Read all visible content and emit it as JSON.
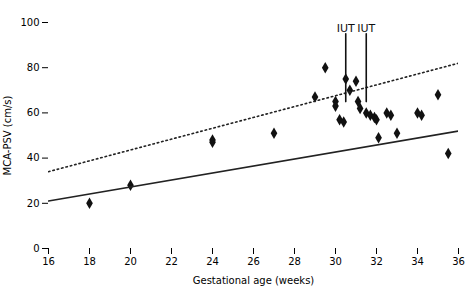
{
  "chart_data": {
    "type": "scatter",
    "xlabel": "Gestational age (weeks)",
    "ylabel": "MCA-PSV (cm/s)",
    "xlim": [
      16,
      36
    ],
    "ylim": [
      0,
      100
    ],
    "xticks": [
      16,
      18,
      20,
      22,
      24,
      26,
      28,
      30,
      32,
      34,
      36
    ],
    "yticks": [
      0,
      20,
      40,
      60,
      80,
      100
    ],
    "grid": false,
    "series": [
      {
        "type": "scatter",
        "marker": "diamond",
        "color": "#111111",
        "x": [
          18,
          20,
          24,
          24,
          27,
          29,
          29.5,
          30,
          30,
          30.2,
          30.4,
          30.5,
          30.7,
          31,
          31.1,
          31.2,
          31.5,
          31.7,
          31.9,
          32,
          32.1,
          32.5,
          32.7,
          33,
          34,
          34.2,
          35,
          35.5
        ],
        "values": [
          20,
          28,
          48,
          47,
          51,
          67,
          80,
          65,
          63,
          57,
          56,
          75,
          70,
          74,
          65,
          62,
          60,
          59,
          58,
          57,
          49,
          60,
          59,
          51,
          60,
          59,
          68,
          42
        ]
      },
      {
        "type": "line",
        "line_style": "solid",
        "color": "#222222",
        "x": [
          16,
          36
        ],
        "values": [
          21,
          52
        ]
      },
      {
        "type": "line",
        "line_style": "dotted",
        "color": "#222222",
        "x": [
          16,
          36
        ],
        "values": [
          34,
          82
        ]
      },
      {
        "type": "line",
        "line_style": "solid",
        "color": "#111111",
        "x": [
          30.5,
          30.5
        ],
        "values": [
          65,
          95
        ]
      },
      {
        "type": "line",
        "line_style": "solid",
        "color": "#111111",
        "x": [
          31.5,
          31.5
        ],
        "values": [
          65,
          95
        ]
      }
    ],
    "annotations": [
      {
        "text": "IUT",
        "x": 30.5,
        "y": 96,
        "color": "#111111"
      },
      {
        "text": "IUT",
        "x": 31.5,
        "y": 96,
        "color": "#111111"
      }
    ]
  }
}
